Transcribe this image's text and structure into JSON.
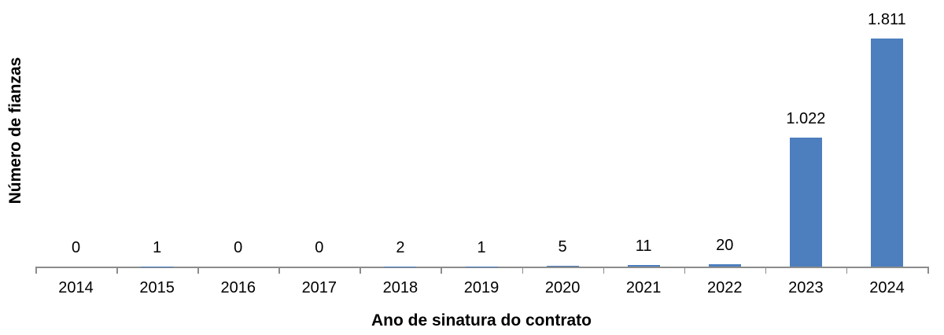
{
  "chart_data": {
    "type": "bar",
    "title": "",
    "xlabel": "Ano de sinatura do contrato",
    "ylabel": "Número de fianzas",
    "categories": [
      "2014",
      "2015",
      "2016",
      "2017",
      "2018",
      "2019",
      "2020",
      "2021",
      "2022",
      "2023",
      "2024"
    ],
    "values": [
      0,
      1,
      0,
      0,
      2,
      1,
      5,
      11,
      20,
      1022,
      1811
    ],
    "value_labels": [
      "0",
      "1",
      "0",
      "0",
      "2",
      "1",
      "5",
      "11",
      "20",
      "1.022",
      "1.811"
    ],
    "ylim": [
      0,
      1900
    ],
    "grid": false,
    "legend": "none",
    "data_labels_position": "outside-end",
    "bar_color": "#4D7EBD",
    "axis_color": "#8C8C8C",
    "text_color": "#000000",
    "background_color": "#FFFFFF"
  }
}
